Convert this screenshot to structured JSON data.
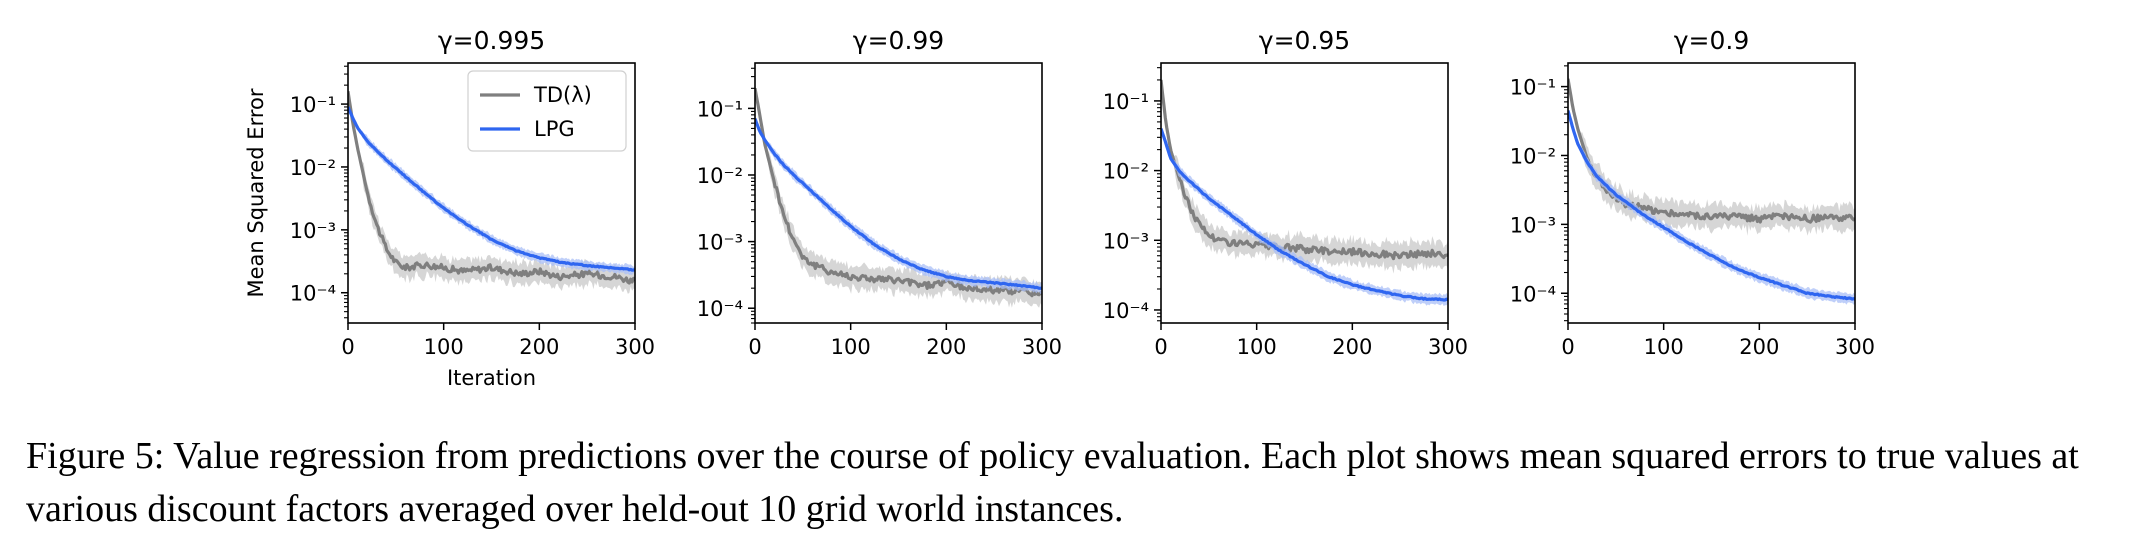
{
  "caption": "Figure 5: Value regression from predictions over the course of policy evaluation. Each plot shows mean squared errors to true values at various discount factors averaged over held-out 10 grid world instances.",
  "colors": {
    "td": "#7f7f7f",
    "td_band": "#c8c8c8",
    "lpg": "#2f66f0",
    "lpg_band": "#a9bff7"
  },
  "chart_data": [
    {
      "type": "line",
      "title": "γ=0.995",
      "xlabel": "Iteration",
      "ylabel": "Mean Squared Error",
      "xlim": [
        0,
        300
      ],
      "xticks": [
        "0",
        "100",
        "200",
        "300"
      ],
      "yscale": "log",
      "ylim": [
        3.3e-05,
        0.45
      ],
      "yticks": [
        {
          "value": 0.1,
          "label": "10⁻¹"
        },
        {
          "value": 0.01,
          "label": "10⁻²"
        },
        {
          "value": 0.001,
          "label": "10⁻³"
        },
        {
          "value": 0.0001,
          "label": "10⁻⁴"
        }
      ],
      "legend": "top-right",
      "series": [
        {
          "name": "TD(λ)",
          "color": "#7f7f7f",
          "x": [
            0,
            5,
            10,
            20,
            30,
            40,
            50,
            60,
            80,
            100,
            120,
            150,
            180,
            200,
            220,
            250,
            280,
            300
          ],
          "y": [
            0.16,
            0.05,
            0.02,
            0.004,
            0.0012,
            0.0005,
            0.0003,
            0.00025,
            0.00028,
            0.00025,
            0.00022,
            0.00025,
            0.0002,
            0.00022,
            0.00018,
            0.0002,
            0.00018,
            0.00015
          ]
        },
        {
          "name": "LPG",
          "color": "#2f66f0",
          "x": [
            0,
            5,
            10,
            20,
            30,
            50,
            75,
            100,
            125,
            150,
            175,
            200,
            225,
            250,
            275,
            300
          ],
          "y": [
            0.09,
            0.06,
            0.042,
            0.026,
            0.018,
            0.0095,
            0.0045,
            0.0022,
            0.0012,
            0.0007,
            0.00047,
            0.00036,
            0.0003,
            0.00027,
            0.00025,
            0.00023
          ]
        }
      ]
    },
    {
      "type": "line",
      "title": "γ=0.99",
      "xlabel": "",
      "ylabel": "",
      "xlim": [
        0,
        300
      ],
      "xticks": [
        "0",
        "100",
        "200",
        "300"
      ],
      "yscale": "log",
      "ylim": [
        6e-05,
        0.48
      ],
      "yticks": [
        {
          "value": 0.1,
          "label": "10⁻¹"
        },
        {
          "value": 0.01,
          "label": "10⁻²"
        },
        {
          "value": 0.001,
          "label": "10⁻³"
        },
        {
          "value": 0.0001,
          "label": "10⁻⁴"
        }
      ],
      "legend": "none",
      "series": [
        {
          "name": "TD(λ)",
          "color": "#7f7f7f",
          "x": [
            0,
            5,
            10,
            20,
            30,
            40,
            50,
            60,
            80,
            100,
            120,
            150,
            180,
            200,
            220,
            250,
            280,
            300
          ],
          "y": [
            0.2,
            0.08,
            0.03,
            0.008,
            0.0025,
            0.0011,
            0.0006,
            0.00045,
            0.00035,
            0.0003,
            0.00028,
            0.00026,
            0.00022,
            0.00025,
            0.0002,
            0.00019,
            0.00018,
            0.00016
          ]
        },
        {
          "name": "LPG",
          "color": "#2f66f0",
          "x": [
            0,
            5,
            10,
            20,
            30,
            50,
            75,
            100,
            125,
            150,
            175,
            200,
            225,
            250,
            275,
            300
          ],
          "y": [
            0.07,
            0.045,
            0.034,
            0.021,
            0.014,
            0.0075,
            0.0035,
            0.0017,
            0.0009,
            0.00055,
            0.00038,
            0.0003,
            0.00026,
            0.00024,
            0.00022,
            0.0002
          ]
        }
      ]
    },
    {
      "type": "line",
      "title": "γ=0.95",
      "xlabel": "",
      "ylabel": "",
      "xlim": [
        0,
        300
      ],
      "xticks": [
        "0",
        "100",
        "200",
        "300"
      ],
      "yscale": "log",
      "ylim": [
        6.5e-05,
        0.35
      ],
      "yticks": [
        {
          "value": 0.1,
          "label": "10⁻¹"
        },
        {
          "value": 0.01,
          "label": "10⁻²"
        },
        {
          "value": 0.001,
          "label": "10⁻³"
        },
        {
          "value": 0.0001,
          "label": "10⁻⁴"
        }
      ],
      "legend": "none",
      "series": [
        {
          "name": "TD(λ)",
          "color": "#7f7f7f",
          "x": [
            0,
            5,
            10,
            20,
            30,
            40,
            50,
            60,
            80,
            100,
            120,
            150,
            180,
            200,
            220,
            250,
            280,
            300
          ],
          "y": [
            0.2,
            0.05,
            0.02,
            0.007,
            0.003,
            0.0017,
            0.0012,
            0.001,
            0.0009,
            0.00085,
            0.0008,
            0.00075,
            0.0007,
            0.00068,
            0.00065,
            0.0006,
            0.00065,
            0.0006
          ]
        },
        {
          "name": "LPG",
          "color": "#2f66f0",
          "x": [
            0,
            5,
            10,
            20,
            30,
            50,
            75,
            100,
            125,
            150,
            175,
            200,
            225,
            250,
            275,
            300
          ],
          "y": [
            0.04,
            0.025,
            0.015,
            0.0095,
            0.007,
            0.004,
            0.0022,
            0.0012,
            0.0007,
            0.00045,
            0.0003,
            0.00023,
            0.00019,
            0.00016,
            0.000145,
            0.00014
          ]
        }
      ]
    },
    {
      "type": "line",
      "title": "γ=0.9",
      "xlabel": "",
      "ylabel": "",
      "xlim": [
        0,
        300
      ],
      "xticks": [
        "0",
        "100",
        "200",
        "300"
      ],
      "yscale": "log",
      "ylim": [
        3.7e-05,
        0.22
      ],
      "yticks": [
        {
          "value": 0.1,
          "label": "10⁻¹"
        },
        {
          "value": 0.01,
          "label": "10⁻²"
        },
        {
          "value": 0.001,
          "label": "10⁻³"
        },
        {
          "value": 0.0001,
          "label": "10⁻⁴"
        }
      ],
      "legend": "none",
      "series": [
        {
          "name": "TD(λ)",
          "color": "#7f7f7f",
          "x": [
            0,
            5,
            10,
            20,
            30,
            40,
            50,
            60,
            80,
            100,
            120,
            150,
            180,
            200,
            220,
            250,
            280,
            300
          ],
          "y": [
            0.13,
            0.05,
            0.025,
            0.009,
            0.005,
            0.0033,
            0.0025,
            0.002,
            0.0017,
            0.0015,
            0.0014,
            0.0013,
            0.0013,
            0.0012,
            0.0013,
            0.0012,
            0.00125,
            0.0012
          ]
        },
        {
          "name": "LPG",
          "color": "#2f66f0",
          "x": [
            0,
            5,
            10,
            20,
            30,
            50,
            75,
            100,
            125,
            150,
            175,
            200,
            225,
            250,
            275,
            300
          ],
          "y": [
            0.045,
            0.025,
            0.015,
            0.008,
            0.005,
            0.0027,
            0.0015,
            0.0009,
            0.00055,
            0.00035,
            0.00023,
            0.00017,
            0.00013,
            0.0001,
            9e-05,
            8.2e-05
          ]
        }
      ]
    }
  ]
}
